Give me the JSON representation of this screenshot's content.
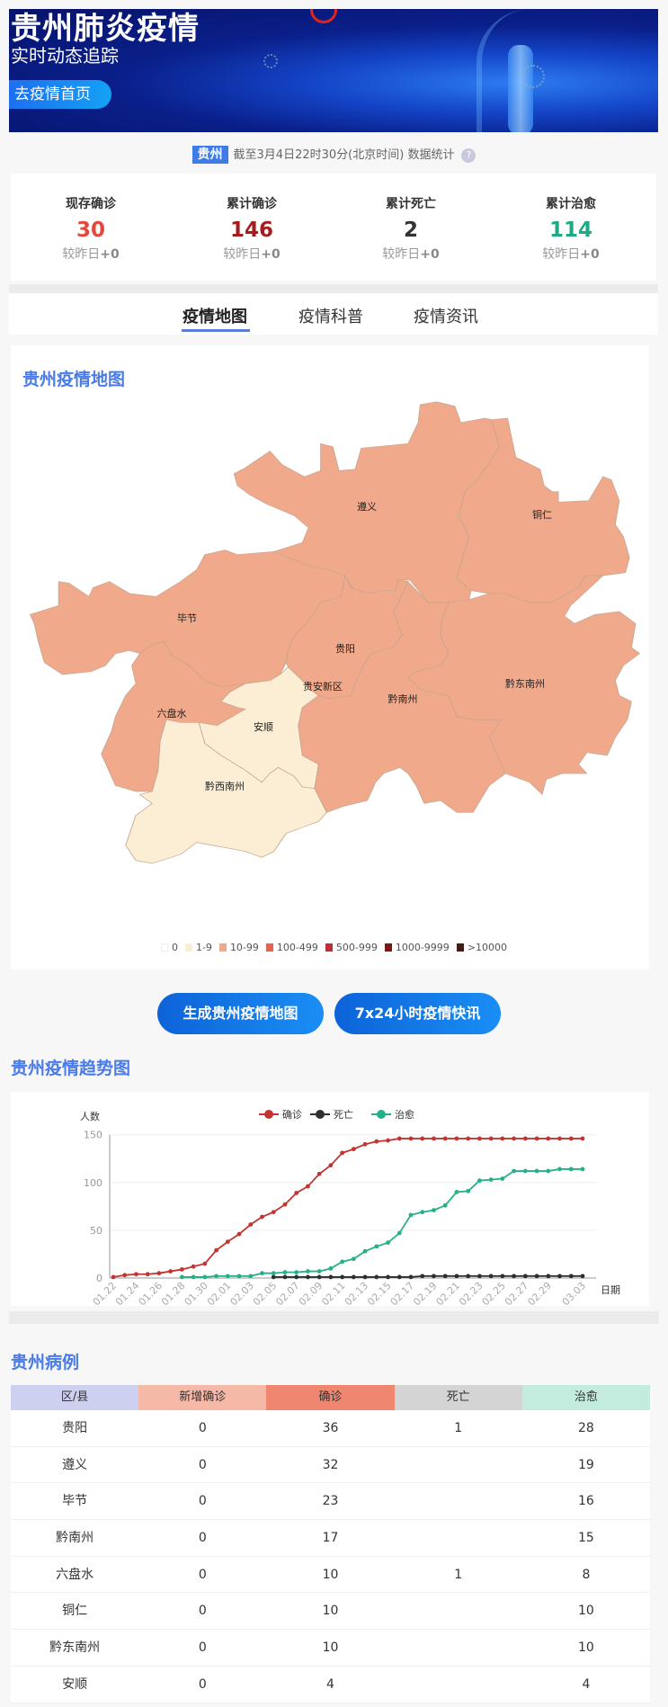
{
  "banner": {
    "title": "贵州肺炎疫情",
    "subtitle": "实时动态追踪",
    "home_button": "去疫情首页"
  },
  "info": {
    "region_tag": "贵州",
    "timestamp": "截至3月4日22时30分(北京时间)",
    "suffix": "数据统计",
    "help_icon": "question-circle-icon"
  },
  "stats": [
    {
      "label": "现存确诊",
      "value": "30",
      "delta_label": "较昨日",
      "delta": "+0",
      "color": "#e5473c"
    },
    {
      "label": "累计确诊",
      "value": "146",
      "delta_label": "较昨日",
      "delta": "+0",
      "color": "#a61c1c"
    },
    {
      "label": "累计死亡",
      "value": "2",
      "delta_label": "较昨日",
      "delta": "+0",
      "color": "#333333"
    },
    {
      "label": "累计治愈",
      "value": "114",
      "delta_label": "较昨日",
      "delta": "+0",
      "color": "#1fa987"
    }
  ],
  "tabs": [
    {
      "label": "疫情地图",
      "active": true
    },
    {
      "label": "疫情科普",
      "active": false
    },
    {
      "label": "疫情资讯",
      "active": false
    }
  ],
  "map": {
    "title": "贵州疫情地图",
    "regions": [
      {
        "name": "遵义",
        "level": 2
      },
      {
        "name": "铜仁",
        "level": 2
      },
      {
        "name": "毕节",
        "level": 2
      },
      {
        "name": "六盘水",
        "level": 2
      },
      {
        "name": "安顺",
        "level": 1
      },
      {
        "name": "黔西南州",
        "level": 1
      },
      {
        "name": "贵阳",
        "level": 2
      },
      {
        "name": "黔南州",
        "level": 2
      },
      {
        "name": "黔东南州",
        "level": 2
      }
    ],
    "extra_label": "贵安新区",
    "legend": [
      {
        "label": "0",
        "color": "#ffffff"
      },
      {
        "label": "1-9",
        "color": "#fbeed5"
      },
      {
        "label": "10-99",
        "color": "#f0a98b"
      },
      {
        "label": "100-499",
        "color": "#e0644f"
      },
      {
        "label": "500-999",
        "color": "#c52e2e"
      },
      {
        "label": "1000-9999",
        "color": "#7d1616"
      },
      {
        "label": ">10000",
        "color": "#4a1a10"
      }
    ]
  },
  "buttons": {
    "generate_map": "生成贵州疫情地图",
    "news_flash": "7x24小时疫情快讯"
  },
  "trend": {
    "title": "贵州疫情趋势图"
  },
  "chart_data": {
    "type": "line",
    "ylabel": "人数",
    "xlabel": "日期",
    "ylim": [
      0,
      150
    ],
    "yticks": [
      0,
      50,
      100,
      150
    ],
    "grid": true,
    "legend": "top-center",
    "x": [
      "01.22",
      "01.23",
      "01.24",
      "01.25",
      "01.26",
      "01.27",
      "01.28",
      "01.29",
      "01.30",
      "01.31",
      "02.01",
      "02.02",
      "02.03",
      "02.04",
      "02.05",
      "02.06",
      "02.07",
      "02.08",
      "02.09",
      "02.10",
      "02.11",
      "02.12",
      "02.13",
      "02.14",
      "02.15",
      "02.16",
      "02.17",
      "02.18",
      "02.19",
      "02.20",
      "02.21",
      "02.22",
      "02.23",
      "02.24",
      "02.25",
      "02.26",
      "02.27",
      "02.28",
      "02.29",
      "03.01",
      "03.02",
      "03.03"
    ],
    "xticks": [
      "01.22",
      "01.24",
      "01.26",
      "01.28",
      "01.30",
      "02.01",
      "02.03",
      "02.05",
      "02.07",
      "02.09",
      "02.11",
      "02.13",
      "02.15",
      "02.17",
      "02.19",
      "02.21",
      "02.23",
      "02.25",
      "02.27",
      "02.29",
      "03.03"
    ],
    "series": [
      {
        "name": "确诊",
        "color": "#c23531",
        "values": [
          1,
          3,
          4,
          4,
          5,
          7,
          9,
          12,
          15,
          29,
          38,
          46,
          56,
          64,
          69,
          77,
          89,
          96,
          109,
          118,
          131,
          135,
          140,
          143,
          144,
          146,
          146,
          146,
          146,
          146,
          146,
          146,
          146,
          146,
          146,
          146,
          146,
          146,
          146,
          146,
          146,
          146
        ]
      },
      {
        "name": "死亡",
        "color": "#2f2f2f",
        "values": [
          null,
          null,
          null,
          null,
          null,
          null,
          null,
          null,
          null,
          null,
          null,
          null,
          null,
          null,
          1,
          1,
          1,
          1,
          1,
          1,
          1,
          1,
          1,
          1,
          1,
          1,
          1,
          2,
          2,
          2,
          2,
          2,
          2,
          2,
          2,
          2,
          2,
          2,
          2,
          2,
          2,
          2
        ]
      },
      {
        "name": "治愈",
        "color": "#26b08a",
        "values": [
          null,
          null,
          null,
          null,
          null,
          null,
          1,
          1,
          1,
          2,
          2,
          2,
          2,
          5,
          5,
          6,
          6,
          7,
          7,
          10,
          17,
          20,
          28,
          33,
          37,
          47,
          66,
          69,
          71,
          76,
          90,
          91,
          102,
          103,
          104,
          112,
          112,
          112,
          112,
          114,
          114,
          114
        ]
      }
    ]
  },
  "cases": {
    "title": "贵州病例",
    "headers": [
      "区/县",
      "新增确诊",
      "确诊",
      "死亡",
      "治愈"
    ],
    "header_colors": [
      "#cdd0ee",
      "#f6b8a7",
      "#ef8770",
      "#d4d4d4",
      "#c3ecdf"
    ],
    "rows": [
      [
        "贵阳",
        "0",
        "36",
        "1",
        "28"
      ],
      [
        "遵义",
        "0",
        "32",
        "",
        "19"
      ],
      [
        "毕节",
        "0",
        "23",
        "",
        "16"
      ],
      [
        "黔南州",
        "0",
        "17",
        "",
        "15"
      ],
      [
        "六盘水",
        "0",
        "10",
        "1",
        "8"
      ],
      [
        "铜仁",
        "0",
        "10",
        "",
        "10"
      ],
      [
        "黔东南州",
        "0",
        "10",
        "",
        "10"
      ],
      [
        "安顺",
        "0",
        "4",
        "",
        "4"
      ]
    ]
  }
}
